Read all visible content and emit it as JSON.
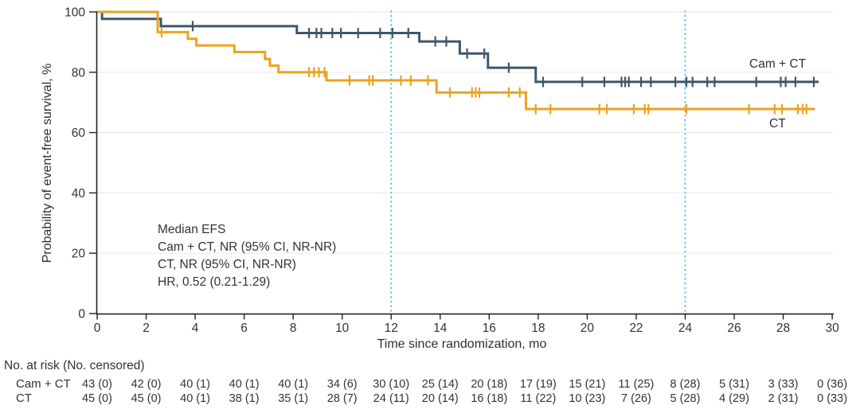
{
  "colors": {
    "cam_ct_curve": "#3e5769",
    "ct_curve": "#eda21f",
    "refline": "#55c7e9",
    "grid": "#ececec",
    "axis": "#222222",
    "text": "#333333"
  },
  "chart_data": {
    "type": "line",
    "subtype": "kaplan-meier-step",
    "title": "",
    "xlabel": "Time since randomization, mo",
    "ylabel": "Probability of event-free survival, %",
    "xlim": [
      0,
      30
    ],
    "ylim": [
      0,
      100
    ],
    "xticks": [
      0,
      2,
      4,
      6,
      8,
      10,
      12,
      14,
      16,
      18,
      20,
      22,
      24,
      26,
      28,
      30
    ],
    "yticks": [
      0,
      20,
      40,
      60,
      80,
      100
    ],
    "grid": true,
    "reference_lines_x": [
      12,
      24
    ],
    "series": [
      {
        "name": "Cam + CT",
        "color": "#3e5769",
        "steps": [
          [
            0,
            100
          ],
          [
            0.2,
            97.7
          ],
          [
            2.6,
            95.3
          ],
          [
            8.15,
            93.0
          ],
          [
            13.15,
            90.2
          ],
          [
            14.8,
            86.2
          ],
          [
            15.95,
            81.5
          ],
          [
            17.9,
            76.8
          ],
          [
            29.45,
            76.8
          ]
        ],
        "censors": [
          [
            3.9,
            95.3
          ],
          [
            8.65,
            93.0
          ],
          [
            8.95,
            93.0
          ],
          [
            9.15,
            93.0
          ],
          [
            9.6,
            93.0
          ],
          [
            9.95,
            93.0
          ],
          [
            10.65,
            93.0
          ],
          [
            11.55,
            93.0
          ],
          [
            12.05,
            93.0
          ],
          [
            12.7,
            93.0
          ],
          [
            13.8,
            90.2
          ],
          [
            14.25,
            90.2
          ],
          [
            15.1,
            86.2
          ],
          [
            15.8,
            86.2
          ],
          [
            16.8,
            81.5
          ],
          [
            18.2,
            76.8
          ],
          [
            19.8,
            76.8
          ],
          [
            20.7,
            76.8
          ],
          [
            21.4,
            76.8
          ],
          [
            21.55,
            76.8
          ],
          [
            21.7,
            76.8
          ],
          [
            22.2,
            76.8
          ],
          [
            22.6,
            76.8
          ],
          [
            23.6,
            76.8
          ],
          [
            24.05,
            76.8
          ],
          [
            24.3,
            76.8
          ],
          [
            24.9,
            76.8
          ],
          [
            25.2,
            76.8
          ],
          [
            26.9,
            76.8
          ],
          [
            27.9,
            76.8
          ],
          [
            28.1,
            76.8
          ],
          [
            28.5,
            76.8
          ],
          [
            29.25,
            76.8
          ]
        ]
      },
      {
        "name": "CT",
        "color": "#eda21f",
        "steps": [
          [
            0,
            100
          ],
          [
            2.47,
            93.3
          ],
          [
            3.7,
            91.1
          ],
          [
            4.05,
            88.9
          ],
          [
            5.6,
            86.7
          ],
          [
            6.85,
            84.4
          ],
          [
            7.05,
            82.2
          ],
          [
            7.4,
            80.0
          ],
          [
            9.36,
            77.3
          ],
          [
            13.85,
            73.3
          ],
          [
            17.5,
            67.8
          ],
          [
            29.3,
            67.8
          ]
        ],
        "censors": [
          [
            2.63,
            93.3
          ],
          [
            8.65,
            80.0
          ],
          [
            8.85,
            80.0
          ],
          [
            9.05,
            80.0
          ],
          [
            9.28,
            80.0
          ],
          [
            10.3,
            77.3
          ],
          [
            11.1,
            77.3
          ],
          [
            11.25,
            77.3
          ],
          [
            12.4,
            77.3
          ],
          [
            12.8,
            77.3
          ],
          [
            13.5,
            77.3
          ],
          [
            14.4,
            73.3
          ],
          [
            15.3,
            73.3
          ],
          [
            15.45,
            73.3
          ],
          [
            15.6,
            73.3
          ],
          [
            16.8,
            73.3
          ],
          [
            17.25,
            73.3
          ],
          [
            17.9,
            67.8
          ],
          [
            18.5,
            67.8
          ],
          [
            20.5,
            67.8
          ],
          [
            20.8,
            67.8
          ],
          [
            21.9,
            67.8
          ],
          [
            22.35,
            67.8
          ],
          [
            22.5,
            67.8
          ],
          [
            24.05,
            67.8
          ],
          [
            26.6,
            67.8
          ],
          [
            27.65,
            67.8
          ],
          [
            27.95,
            67.8
          ],
          [
            28.6,
            67.8
          ],
          [
            28.8,
            67.8
          ],
          [
            28.95,
            67.8
          ]
        ]
      }
    ],
    "annotation": {
      "lines": [
        "Median EFS",
        "Cam + CT, NR (95% CI, NR-NR)",
        "CT, NR (95% CI, NR-NR)",
        "HR, 0.52 (0.21-1.29)"
      ]
    }
  },
  "risk_table": {
    "header": "No. at risk (No. censored)",
    "times": [
      0,
      2,
      4,
      6,
      8,
      10,
      12,
      14,
      16,
      18,
      20,
      22,
      24,
      26,
      28,
      30
    ],
    "rows": [
      {
        "label": "Cam + CT",
        "values": [
          "43 (0)",
          "42 (0)",
          "40 (1)",
          "40 (1)",
          "40 (1)",
          "34 (6)",
          "30 (10)",
          "25 (14)",
          "20 (18)",
          "17 (19)",
          "15 (21)",
          "11 (25)",
          "8 (28)",
          "5 (31)",
          "3 (33)",
          "0 (36)"
        ]
      },
      {
        "label": "CT",
        "values": [
          "45 (0)",
          "45 (0)",
          "40 (1)",
          "38 (1)",
          "35 (1)",
          "28 (7)",
          "24 (11)",
          "20 (14)",
          "16 (18)",
          "11 (22)",
          "10 (23)",
          "7 (26)",
          "5 (28)",
          "4 (29)",
          "2 (31)",
          "0 (33)"
        ]
      }
    ]
  }
}
